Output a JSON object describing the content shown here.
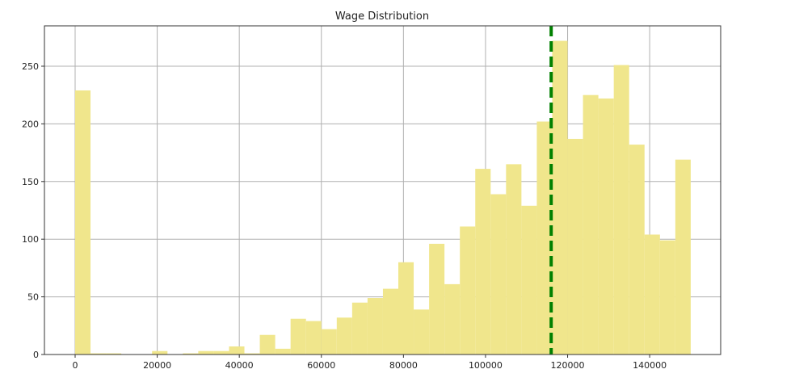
{
  "chart_data": {
    "type": "bar",
    "title": "Wage Distribution",
    "xlabel": "",
    "ylabel": "",
    "bin_start": 0,
    "bin_width": 3750,
    "values": [
      229,
      1,
      1,
      0,
      0,
      3,
      0,
      1,
      3,
      3,
      7,
      1,
      17,
      5,
      31,
      29,
      22,
      32,
      45,
      49,
      57,
      80,
      39,
      96,
      61,
      111,
      161,
      139,
      165,
      129,
      202,
      272,
      187,
      225,
      222,
      251,
      182,
      104,
      99,
      169
    ],
    "xlim": [
      -7480,
      157300
    ],
    "ylim": [
      0,
      285
    ],
    "xticks": [
      "0",
      "20000",
      "40000",
      "60000",
      "80000",
      "100000",
      "120000",
      "140000"
    ],
    "xtick_values": [
      0,
      20000,
      40000,
      60000,
      80000,
      100000,
      120000,
      140000
    ],
    "yticks": [
      "0",
      "50",
      "100",
      "150",
      "200",
      "250"
    ],
    "ytick_values": [
      0,
      50,
      100,
      150,
      200,
      250
    ],
    "grid": true,
    "bar_color": "#f0e68c",
    "mean_line": {
      "x": 116000,
      "color": "#008000",
      "style": "dashed"
    }
  }
}
